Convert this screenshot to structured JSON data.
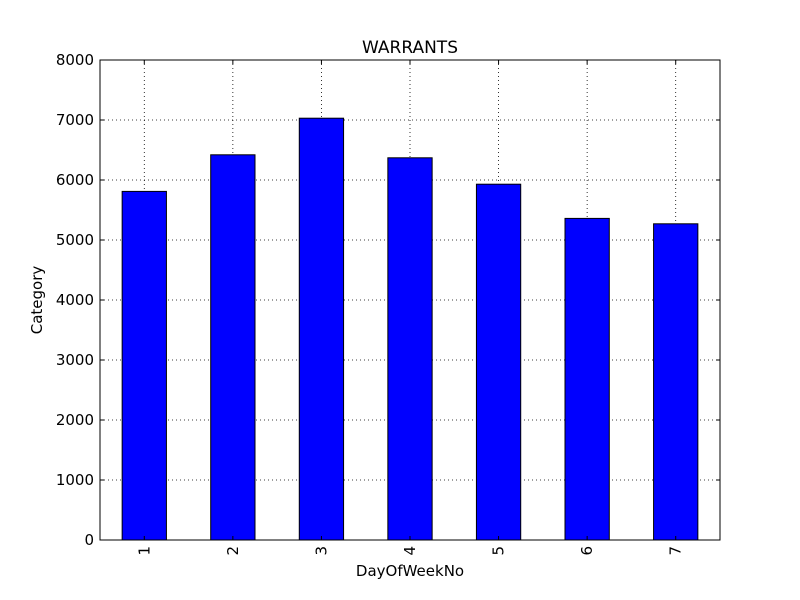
{
  "chart_data": {
    "type": "bar",
    "title": "WARRANTS",
    "xlabel": "DayOfWeekNo",
    "ylabel": "Category",
    "categories": [
      "1",
      "2",
      "3",
      "4",
      "5",
      "6",
      "7"
    ],
    "values": [
      5810,
      6420,
      7030,
      6370,
      5930,
      5360,
      5270
    ],
    "ylim": [
      0,
      8000
    ],
    "yticks": [
      0,
      1000,
      2000,
      3000,
      4000,
      5000,
      6000,
      7000,
      8000
    ],
    "grid": true,
    "bar_color": "#0000ff",
    "x_tick_rotation": "vertical"
  }
}
